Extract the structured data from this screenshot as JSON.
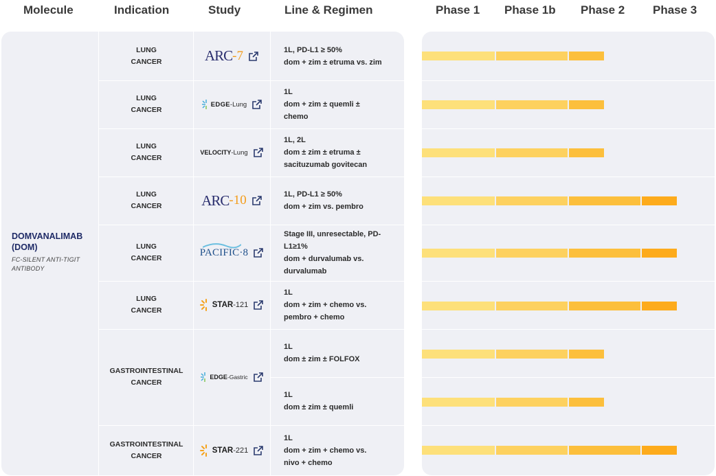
{
  "headers": {
    "molecule": "Molecule",
    "indication": "Indication",
    "study": "Study",
    "line_regimen": "Line & Regimen",
    "phase1": "Phase 1",
    "phase1b": "Phase 1b",
    "phase2": "Phase 2",
    "phase3": "Phase 3"
  },
  "molecule": {
    "name_line1": "DOMVANALIMAB",
    "name_line2": "(DOM)",
    "sub_line1": "FC-SILENT ANTI-TIGIT",
    "sub_line2": "ANTIBODY"
  },
  "colors": {
    "phase1": "#fde07a",
    "phase1b": "#fdd15f",
    "phase2": "#fcbf3c",
    "phase3": "#fdab1c",
    "panel": "#eff0f5",
    "molecule_text": "#1e2a66"
  },
  "rows": [
    {
      "indication": [
        "LUNG",
        "CANCER"
      ],
      "study": "ARC-7",
      "line": "1L, PD-L1 ≥ 50%",
      "regimen": [
        "dom + zim ± etruma vs. zim"
      ],
      "phase_reached": 2
    },
    {
      "indication": [
        "LUNG",
        "CANCER"
      ],
      "study": "EDGE-Lung",
      "line": "1L",
      "regimen": [
        "dom + zim ± quemli ±",
        "chemo"
      ],
      "phase_reached": 2
    },
    {
      "indication": [
        "LUNG",
        "CANCER"
      ],
      "study": "VELOCITY-Lung",
      "line": "1L, 2L",
      "regimen": [
        "dom ± zim ± etruma ±",
        "sacituzumab govitecan"
      ],
      "phase_reached": 2
    },
    {
      "indication": [
        "LUNG",
        "CANCER"
      ],
      "study": "ARC-10",
      "line": "1L, PD-L1 ≥ 50%",
      "regimen": [
        "dom + zim vs. pembro"
      ],
      "phase_reached": 3
    },
    {
      "indication": [
        "LUNG",
        "CANCER"
      ],
      "study": "PACIFIC-8",
      "line": "Stage III, unresectable, PD-",
      "regimen": [
        "L1≥1%",
        "dom + durvalumab vs.",
        "durvalumab"
      ],
      "phase_reached": 3
    },
    {
      "indication": [
        "LUNG",
        "CANCER"
      ],
      "study": "STAR-121",
      "line": "1L",
      "regimen": [
        "dom + zim + chemo vs.",
        "pembro + chemo"
      ],
      "phase_reached": 3
    },
    {
      "indication": [
        "GASTROINTESTINAL",
        "CANCER"
      ],
      "study": "EDGE-Gastric",
      "line": "1L",
      "regimen": [
        "dom ± zim ± FOLFOX"
      ],
      "phase_reached": 2
    },
    {
      "indication": [],
      "study": "",
      "line": "1L",
      "regimen": [
        "dom ± zim ± quemli"
      ],
      "phase_reached": 2
    },
    {
      "indication": [
        "GASTROINTESTINAL",
        "CANCER"
      ],
      "study": "STAR-221",
      "line": "1L",
      "regimen": [
        "dom + zim + chemo vs.",
        "nivo + chemo"
      ],
      "phase_reached": 3
    }
  ],
  "logos": {
    "arc7": {
      "prefix": "ARC",
      "suffix": "-7"
    },
    "edge_lung": {
      "prefix": "EDGE",
      "suffix": "-Lung"
    },
    "velocity": {
      "prefix": "VELOCITY",
      "suffix": "-Lung"
    },
    "arc10": {
      "prefix": "ARC",
      "suffix": "-10"
    },
    "pacific": {
      "text": "PACIFIC·8"
    },
    "star121": {
      "prefix": "STAR",
      "suffix": "-121"
    },
    "edge_gastric": {
      "prefix": "EDGE",
      "suffix": "-Gastric"
    },
    "star221": {
      "prefix": "STAR",
      "suffix": "-221"
    }
  }
}
